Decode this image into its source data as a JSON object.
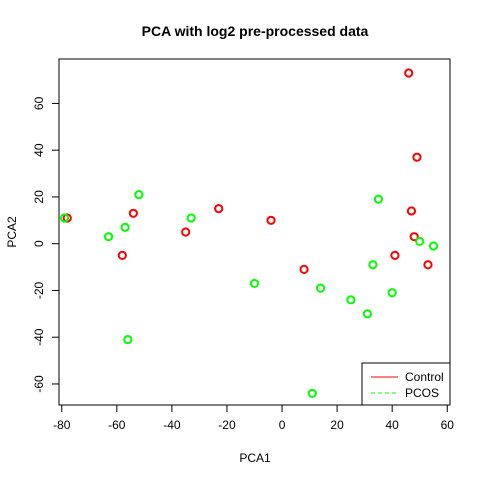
{
  "chart_data": {
    "type": "scatter",
    "title": "PCA with log2 pre-processed data",
    "xlabel": "PCA1",
    "ylabel": "PCA2",
    "xlim": [
      -81,
      61
    ],
    "ylim": [
      -69,
      79
    ],
    "x_ticks": [
      -80,
      -60,
      -40,
      -20,
      0,
      20,
      40,
      60
    ],
    "y_ticks": [
      -60,
      -40,
      -20,
      0,
      20,
      40,
      60
    ],
    "legend_position": "bottom-right",
    "series": [
      {
        "name": "Control",
        "color": "#ff0000",
        "points": [
          {
            "x": -78,
            "y": 11
          },
          {
            "x": -58,
            "y": -5
          },
          {
            "x": -54,
            "y": 13
          },
          {
            "x": -35,
            "y": 5
          },
          {
            "x": -23,
            "y": 15
          },
          {
            "x": -4,
            "y": 10
          },
          {
            "x": 8,
            "y": -11
          },
          {
            "x": 41,
            "y": -5
          },
          {
            "x": 46,
            "y": 73
          },
          {
            "x": 47,
            "y": 14
          },
          {
            "x": 48,
            "y": 3
          },
          {
            "x": 49,
            "y": 37
          },
          {
            "x": 53,
            "y": -9
          }
        ]
      },
      {
        "name": "PCOS",
        "color": "#00ff00",
        "points": [
          {
            "x": -79,
            "y": 11
          },
          {
            "x": -63,
            "y": 3
          },
          {
            "x": -57,
            "y": 7
          },
          {
            "x": -56,
            "y": -41
          },
          {
            "x": -52,
            "y": 21
          },
          {
            "x": -33,
            "y": 11
          },
          {
            "x": -10,
            "y": -17
          },
          {
            "x": 11,
            "y": -64
          },
          {
            "x": 14,
            "y": -19
          },
          {
            "x": 25,
            "y": -24
          },
          {
            "x": 31,
            "y": -30
          },
          {
            "x": 33,
            "y": -9
          },
          {
            "x": 35,
            "y": 19
          },
          {
            "x": 40,
            "y": -21
          },
          {
            "x": 50,
            "y": 1
          },
          {
            "x": 55,
            "y": -1
          }
        ]
      }
    ]
  }
}
